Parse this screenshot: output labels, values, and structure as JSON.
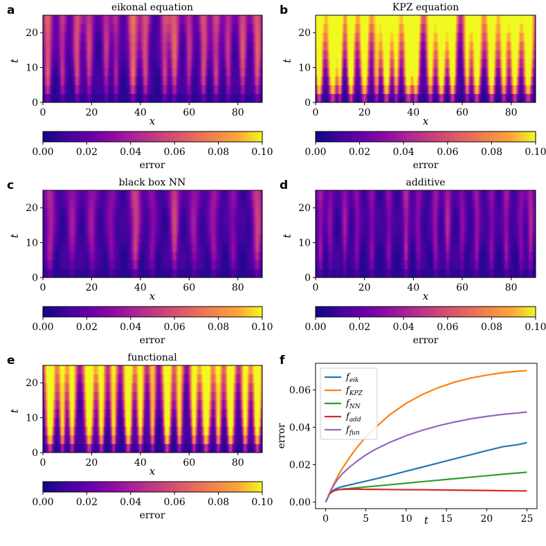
{
  "chart_data": [
    {
      "id": "a",
      "type": "heatmap",
      "title": "eikonal equation",
      "xlabel": "x",
      "ylabel": "t",
      "xlim": [
        0,
        90
      ],
      "ylim": [
        0,
        25
      ],
      "xticks": [
        "0",
        "20",
        "40",
        "60",
        "80"
      ],
      "xtick_values": [
        0,
        20,
        40,
        60,
        80
      ],
      "yticks": [
        "0",
        "10",
        "20"
      ],
      "ytick_values": [
        0,
        10,
        20
      ],
      "colorbar": {
        "label": "error",
        "range": [
          0,
          0.1
        ],
        "ticks": [
          "0.00",
          "0.02",
          "0.04",
          "0.06",
          "0.08",
          "0.10"
        ]
      },
      "stripes": [
        {
          "x": 2,
          "peak": 0.05,
          "width": 1.6
        },
        {
          "x": 8,
          "peak": 0.035,
          "width": 1.4
        },
        {
          "x": 14,
          "peak": 0.045,
          "width": 1.5
        },
        {
          "x": 19,
          "peak": 0.04,
          "width": 1.5
        },
        {
          "x": 26,
          "peak": 0.035,
          "width": 1.4
        },
        {
          "x": 30,
          "peak": 0.03,
          "width": 1.3
        },
        {
          "x": 37,
          "peak": 0.055,
          "width": 1.7
        },
        {
          "x": 42,
          "peak": 0.045,
          "width": 1.5
        },
        {
          "x": 50,
          "peak": 0.04,
          "width": 1.5
        },
        {
          "x": 54,
          "peak": 0.05,
          "width": 1.6
        },
        {
          "x": 60,
          "peak": 0.035,
          "width": 1.4
        },
        {
          "x": 66,
          "peak": 0.045,
          "width": 1.5
        },
        {
          "x": 71,
          "peak": 0.04,
          "width": 1.5
        },
        {
          "x": 76,
          "peak": 0.035,
          "width": 1.4
        },
        {
          "x": 82,
          "peak": 0.045,
          "width": 1.5
        },
        {
          "x": 88,
          "peak": 0.05,
          "width": 1.6
        }
      ]
    },
    {
      "id": "b",
      "type": "heatmap",
      "title": "KPZ equation",
      "xlabel": "x",
      "ylabel": "t",
      "xlim": [
        0,
        90
      ],
      "ylim": [
        0,
        25
      ],
      "xticks": [
        "0",
        "20",
        "40",
        "60",
        "80"
      ],
      "xtick_values": [
        0,
        20,
        40,
        60,
        80
      ],
      "yticks": [
        "0",
        "10",
        "20"
      ],
      "ytick_values": [
        0,
        10,
        20
      ],
      "colorbar": {
        "label": "error",
        "range": [
          0,
          0.1
        ],
        "ticks": [
          "0.00",
          "0.02",
          "0.04",
          "0.06",
          "0.08",
          "0.10"
        ]
      },
      "stripes": [
        {
          "x": 1.5,
          "peak": 0.12,
          "width": 1.6
        },
        {
          "x": 7,
          "peak": 0.12,
          "width": 2.0
        },
        {
          "x": 10,
          "peak": 0.09,
          "width": 1.2
        },
        {
          "x": 14.5,
          "peak": 0.12,
          "width": 1.6
        },
        {
          "x": 20,
          "peak": 0.12,
          "width": 1.8
        },
        {
          "x": 25,
          "peak": 0.08,
          "width": 1.4
        },
        {
          "x": 29,
          "peak": 0.12,
          "width": 1.8
        },
        {
          "x": 33,
          "peak": 0.09,
          "width": 1.4
        },
        {
          "x": 38,
          "peak": 0.12,
          "width": 2.0
        },
        {
          "x": 41,
          "peak": 0.12,
          "width": 1.6
        },
        {
          "x": 47,
          "peak": 0.1,
          "width": 1.6
        },
        {
          "x": 51.5,
          "peak": 0.12,
          "width": 1.8
        },
        {
          "x": 56,
          "peak": 0.12,
          "width": 1.6
        },
        {
          "x": 62,
          "peak": 0.09,
          "width": 1.4
        },
        {
          "x": 66,
          "peak": 0.12,
          "width": 1.8
        },
        {
          "x": 72,
          "peak": 0.12,
          "width": 1.8
        },
        {
          "x": 77,
          "peak": 0.1,
          "width": 1.6
        },
        {
          "x": 81.5,
          "peak": 0.12,
          "width": 1.8
        },
        {
          "x": 87,
          "peak": 0.12,
          "width": 2.0
        }
      ]
    },
    {
      "id": "c",
      "type": "heatmap",
      "title": "black box NN",
      "xlabel": "x",
      "ylabel": "t",
      "xlim": [
        0,
        90
      ],
      "ylim": [
        0,
        25
      ],
      "xticks": [
        "0",
        "20",
        "40",
        "60",
        "80"
      ],
      "xtick_values": [
        0,
        20,
        40,
        60,
        80
      ],
      "yticks": [
        "0",
        "10",
        "20"
      ],
      "ytick_values": [
        0,
        10,
        20
      ],
      "colorbar": {
        "label": "error",
        "range": [
          0,
          0.1
        ],
        "ticks": [
          "0.00",
          "0.02",
          "0.04",
          "0.06",
          "0.08",
          "0.10"
        ]
      },
      "stripes": [
        {
          "x": 3,
          "peak": 0.03,
          "width": 1.8
        },
        {
          "x": 12,
          "peak": 0.025,
          "width": 1.8
        },
        {
          "x": 20,
          "peak": 0.025,
          "width": 1.8
        },
        {
          "x": 28,
          "peak": 0.02,
          "width": 1.8
        },
        {
          "x": 38,
          "peak": 0.04,
          "width": 1.8
        },
        {
          "x": 45,
          "peak": 0.02,
          "width": 1.6
        },
        {
          "x": 54,
          "peak": 0.04,
          "width": 1.6
        },
        {
          "x": 62,
          "peak": 0.025,
          "width": 1.8
        },
        {
          "x": 70,
          "peak": 0.025,
          "width": 1.8
        },
        {
          "x": 78,
          "peak": 0.02,
          "width": 1.6
        },
        {
          "x": 88,
          "peak": 0.04,
          "width": 1.8
        }
      ]
    },
    {
      "id": "d",
      "type": "heatmap",
      "title": "additive",
      "xlabel": "x",
      "ylabel": "t",
      "xlim": [
        0,
        90
      ],
      "ylim": [
        0,
        25
      ],
      "xticks": [
        "0",
        "20",
        "40",
        "60",
        "80"
      ],
      "xtick_values": [
        0,
        20,
        40,
        60,
        80
      ],
      "yticks": [
        "0",
        "10",
        "20"
      ],
      "ytick_values": [
        0,
        10,
        20
      ],
      "colorbar": {
        "label": "error",
        "range": [
          0,
          0.1
        ],
        "ticks": [
          "0.00",
          "0.02",
          "0.04",
          "0.06",
          "0.08",
          "0.10"
        ]
      },
      "stripes": [
        {
          "x": 2,
          "peak": 0.025,
          "width": 1.2
        },
        {
          "x": 6,
          "peak": 0.02,
          "width": 1.2
        },
        {
          "x": 12,
          "peak": 0.025,
          "width": 1.2
        },
        {
          "x": 17,
          "peak": 0.02,
          "width": 1.2
        },
        {
          "x": 23,
          "peak": 0.02,
          "width": 1.2
        },
        {
          "x": 30,
          "peak": 0.02,
          "width": 1.2
        },
        {
          "x": 37,
          "peak": 0.03,
          "width": 1.2
        },
        {
          "x": 42,
          "peak": 0.02,
          "width": 1.2
        },
        {
          "x": 49,
          "peak": 0.025,
          "width": 1.2
        },
        {
          "x": 54,
          "peak": 0.03,
          "width": 1.2
        },
        {
          "x": 60,
          "peak": 0.02,
          "width": 1.2
        },
        {
          "x": 66,
          "peak": 0.025,
          "width": 1.2
        },
        {
          "x": 72,
          "peak": 0.02,
          "width": 1.2
        },
        {
          "x": 78,
          "peak": 0.025,
          "width": 1.2
        },
        {
          "x": 84,
          "peak": 0.02,
          "width": 1.2
        },
        {
          "x": 88,
          "peak": 0.03,
          "width": 1.2
        }
      ]
    },
    {
      "id": "e",
      "type": "heatmap",
      "title": "functional",
      "xlabel": "x",
      "ylabel": "t",
      "xlim": [
        0,
        90
      ],
      "ylim": [
        0,
        25
      ],
      "xticks": [
        "0",
        "20",
        "40",
        "60",
        "80"
      ],
      "xtick_values": [
        0,
        20,
        40,
        60,
        80
      ],
      "yticks": [
        "0",
        "10",
        "20"
      ],
      "ytick_values": [
        0,
        10,
        20
      ],
      "colorbar": {
        "label": "error",
        "range": [
          0,
          0.1
        ],
        "ticks": [
          "0.00",
          "0.02",
          "0.04",
          "0.06",
          "0.08",
          "0.10"
        ]
      },
      "stripes": [
        {
          "x": 3,
          "peak": 0.12,
          "width": 1.8
        },
        {
          "x": 8,
          "peak": 0.09,
          "width": 1.3
        },
        {
          "x": 12,
          "peak": 0.1,
          "width": 1.4
        },
        {
          "x": 19,
          "peak": 0.12,
          "width": 1.8
        },
        {
          "x": 24,
          "peak": 0.1,
          "width": 1.4
        },
        {
          "x": 29,
          "peak": 0.09,
          "width": 1.3
        },
        {
          "x": 35,
          "peak": 0.12,
          "width": 1.6
        },
        {
          "x": 40,
          "peak": 0.1,
          "width": 1.4
        },
        {
          "x": 45,
          "peak": 0.08,
          "width": 1.2
        },
        {
          "x": 51,
          "peak": 0.12,
          "width": 1.6
        },
        {
          "x": 56,
          "peak": 0.09,
          "width": 1.3
        },
        {
          "x": 62,
          "peak": 0.1,
          "width": 1.4
        },
        {
          "x": 67,
          "peak": 0.12,
          "width": 1.8
        },
        {
          "x": 72,
          "peak": 0.09,
          "width": 1.3
        },
        {
          "x": 77,
          "peak": 0.12,
          "width": 1.6
        },
        {
          "x": 83,
          "peak": 0.1,
          "width": 1.4
        },
        {
          "x": 88,
          "peak": 0.12,
          "width": 1.6
        }
      ]
    },
    {
      "id": "f",
      "type": "line",
      "xlabel": "t",
      "ylabel": "error",
      "xlim": [
        -1.25,
        26.25
      ],
      "ylim": [
        -0.0035,
        0.0742
      ],
      "xticks": [
        "0",
        "5",
        "10",
        "15",
        "20",
        "25"
      ],
      "xtick_values": [
        0,
        5,
        10,
        15,
        20,
        25
      ],
      "yticks": [
        "0.00",
        "0.02",
        "0.04",
        "0.06"
      ],
      "ytick_values": [
        0,
        0.02,
        0.04,
        0.06
      ],
      "x": [
        0,
        0.5,
        1,
        1.5,
        2,
        3,
        4,
        5,
        6,
        8,
        10,
        12,
        14,
        16,
        18,
        20,
        22,
        24,
        25
      ],
      "series": [
        {
          "name": "f",
          "sub": "eik",
          "color": "#1f77b4",
          "values": [
            0,
            0.0045,
            0.0065,
            0.0075,
            0.0082,
            0.0092,
            0.0102,
            0.0112,
            0.0122,
            0.0143,
            0.0165,
            0.0187,
            0.0209,
            0.0231,
            0.0253,
            0.0275,
            0.0296,
            0.0308,
            0.0318
          ]
        },
        {
          "name": "f",
          "sub": "KPZ",
          "color": "#ff7f0e",
          "values": [
            0,
            0.005,
            0.0095,
            0.0138,
            0.0175,
            0.024,
            0.0298,
            0.0348,
            0.0392,
            0.0468,
            0.0528,
            0.0575,
            0.0612,
            0.0641,
            0.0663,
            0.0679,
            0.0692,
            0.07,
            0.0703
          ]
        },
        {
          "name": "f",
          "sub": "NN",
          "color": "#2ca02c",
          "values": [
            0,
            0.0045,
            0.006,
            0.0066,
            0.0069,
            0.0073,
            0.0077,
            0.0081,
            0.0085,
            0.0093,
            0.0101,
            0.0109,
            0.0117,
            0.0125,
            0.0133,
            0.0141,
            0.0149,
            0.0156,
            0.016
          ]
        },
        {
          "name": "f",
          "sub": "add",
          "color": "#d62728",
          "values": [
            0,
            0.0045,
            0.006,
            0.0066,
            0.0068,
            0.0069,
            0.0069,
            0.0068,
            0.0068,
            0.0067,
            0.0066,
            0.0066,
            0.0065,
            0.0064,
            0.0063,
            0.0062,
            0.0061,
            0.006,
            0.006
          ]
        },
        {
          "name": "f",
          "sub": "fun",
          "color": "#9467bd",
          "values": [
            0,
            0.0048,
            0.009,
            0.0122,
            0.0148,
            0.0188,
            0.0222,
            0.0252,
            0.0278,
            0.032,
            0.0355,
            0.0384,
            0.0408,
            0.0428,
            0.0445,
            0.0458,
            0.0469,
            0.0477,
            0.0482
          ]
        }
      ],
      "legend": "top-left"
    }
  ]
}
